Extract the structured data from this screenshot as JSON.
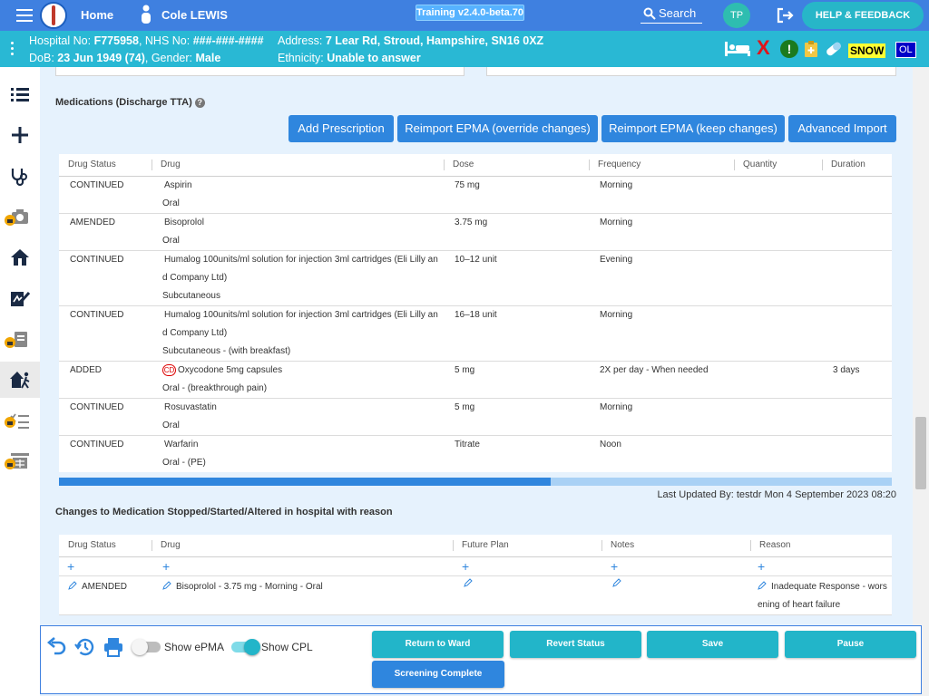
{
  "topbar": {
    "home": "Home",
    "patient_name": "Cole LEWIS",
    "version": "Training v2.4.0-beta.70",
    "search": "Search",
    "avatar": "TP",
    "help": "HELP & FEEDBACK"
  },
  "banner": {
    "hospital_label": "Hospital No:",
    "hospital_no": "F775958",
    "nhs_label": "NHS No:",
    "nhs_no": "###-###-####",
    "dob_label": "DoB:",
    "dob": "23 Jun 1949 (74)",
    "gender_label": "Gender:",
    "gender": "Male",
    "address_label": "Address:",
    "address": "7 Lear Rd, Stroud, Hampshire, SN16 0XZ",
    "ethnicity_label": "Ethnicity:",
    "ethnicity": "Unable to answer",
    "flag_snow": "SNOW",
    "flag_ol": "OL",
    "flag_x": "X",
    "flag_alert": "!"
  },
  "medications": {
    "title": "Medications (Discharge TTA)",
    "help": "?",
    "buttons": [
      "Add Prescription",
      "Reimport EPMA (override changes)",
      "Reimport EPMA (keep changes)",
      "Advanced Import"
    ],
    "columns": [
      "Drug Status",
      "Drug",
      "Dose",
      "Frequency",
      "Quantity",
      "Duration"
    ],
    "rows": [
      {
        "status": "CONTINUED",
        "drug": [
          "Aspirin"
        ],
        "route": "Oral",
        "dose": "75 mg",
        "frequency": "Morning",
        "quantity": "",
        "duration": "",
        "cd": ""
      },
      {
        "status": "AMENDED",
        "drug": [
          "Bisoprolol"
        ],
        "route": "Oral",
        "dose": "3.75 mg",
        "frequency": "Morning",
        "quantity": "",
        "duration": "",
        "cd": ""
      },
      {
        "status": "CONTINUED",
        "drug": [
          "Humalog 100units/ml solution for injection 3ml cartridges (Eli Lilly an",
          "d Company Ltd)"
        ],
        "route": "Subcutaneous",
        "dose": "10–12 unit",
        "frequency": "Evening",
        "quantity": "",
        "duration": "",
        "cd": ""
      },
      {
        "status": "CONTINUED",
        "drug": [
          "Humalog 100units/ml solution for injection 3ml cartridges (Eli Lilly an",
          "d Company Ltd)"
        ],
        "route": "Subcutaneous - (with breakfast)",
        "dose": "16–18 unit",
        "frequency": "Morning",
        "quantity": "",
        "duration": "",
        "cd": ""
      },
      {
        "status": "ADDED",
        "drug": [
          "Oxycodone 5mg capsules"
        ],
        "route": "Oral - (breakthrough pain)",
        "dose": "5 mg",
        "frequency": "2X per day - When needed",
        "quantity": "",
        "duration": "3 days",
        "cd": "CD"
      },
      {
        "status": "CONTINUED",
        "drug": [
          "Rosuvastatin"
        ],
        "route": "Oral",
        "dose": "5 mg",
        "frequency": "Morning",
        "quantity": "",
        "duration": "",
        "cd": ""
      },
      {
        "status": "CONTINUED",
        "drug": [
          "Warfarin"
        ],
        "route": "Oral - (PE)",
        "dose": "Titrate",
        "frequency": "Noon",
        "quantity": "",
        "duration": "",
        "cd": ""
      }
    ],
    "scroll_fraction": 0.59,
    "last_updated": "Last Updated By: testdr Mon 4 September 2023 08:20"
  },
  "changes": {
    "title": "Changes to Medication Stopped/Started/Altered in hospital with reason",
    "columns": [
      "Drug Status",
      "Drug",
      "Future Plan",
      "Notes",
      "Reason"
    ],
    "add_symbol": "+",
    "rows": [
      {
        "status": "AMENDED",
        "drug": "Bisoprolol - 3.75 mg - Morning - Oral",
        "future_plan": "",
        "notes": "",
        "reason": [
          "Inadequate Response - wors",
          "ening of heart failure"
        ]
      }
    ]
  },
  "bottombar": {
    "show_epma": "Show ePMA",
    "show_cpl": "Show CPL",
    "epma_on": false,
    "cpl_on": true,
    "buttons": {
      "return_to_ward": "Return to Ward",
      "revert_status": "Revert Status",
      "save": "Save",
      "pause": "Pause",
      "screening_complete": "Screening Complete"
    }
  },
  "colors": {
    "topbar": "#3f80e0",
    "banner": "#29b8d4",
    "primary_button": "#2f86de",
    "teal_button": "#22b5c9"
  },
  "icons": [
    "menu-icon",
    "user-icon",
    "search-icon",
    "logout-icon",
    "list-icon",
    "plus-icon",
    "stethoscope-icon",
    "camera-icon",
    "house-icon",
    "signature-icon",
    "clipboard-icon",
    "walking-house-icon",
    "checklist-icon",
    "calculator-icon",
    "undo-icon",
    "history-icon",
    "print-icon",
    "pencil-icon"
  ]
}
